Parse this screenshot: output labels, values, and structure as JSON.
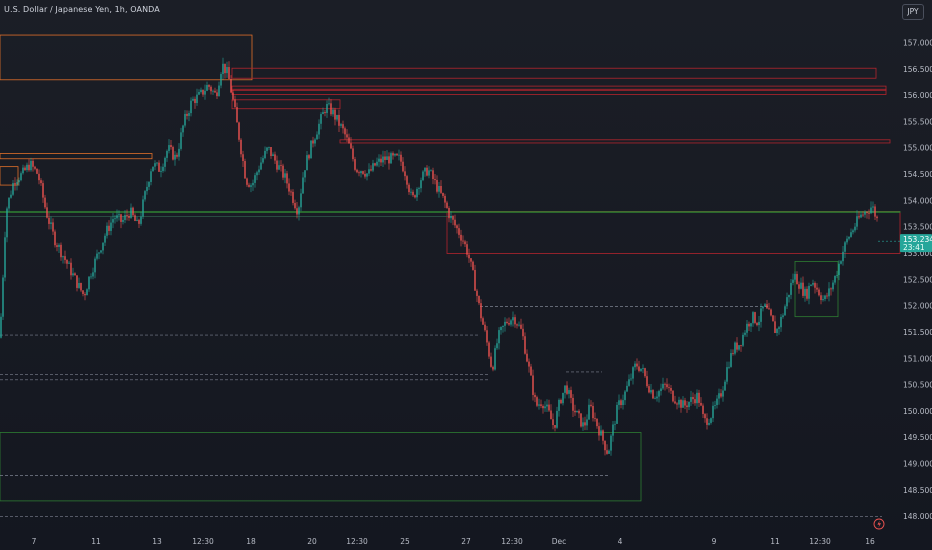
{
  "header": {
    "title": "U.S. Dollar / Japanese Yen, 1h, OANDA",
    "currency": "JPY"
  },
  "colors": {
    "bull": "#26a69a",
    "bear": "#ef5350",
    "zone_red": "#b2252d",
    "zone_orange": "#e0702a",
    "zone_green": "#2e7d32",
    "level_line": "#7c8190"
  },
  "chart_data": {
    "type": "candlestick",
    "title": "U.S. Dollar / Japanese Yen, 1h, OANDA",
    "ylim": [
      147.88,
      157.55
    ],
    "yticks": [
      "157.000",
      "156.500",
      "156.000",
      "155.500",
      "155.000",
      "154.500",
      "154.000",
      "153.500",
      "153.000",
      "152.500",
      "152.000",
      "151.500",
      "151.000",
      "150.500",
      "150.000",
      "149.500",
      "149.000",
      "148.500",
      "148.000"
    ],
    "xlabels": [
      "7",
      "11",
      "13",
      "12:30",
      "18",
      "20",
      "12:30",
      "25",
      "27",
      "12:30",
      "Dec",
      "4",
      "9",
      "11",
      "12:30",
      "16"
    ],
    "last_price": {
      "value": "153.234",
      "countdown": "23:41"
    },
    "path": [
      [
        0,
        151.4
      ],
      [
        6,
        153.8
      ],
      [
        14,
        154.4
      ],
      [
        22,
        154.5
      ],
      [
        30,
        154.7
      ],
      [
        38,
        154.5
      ],
      [
        46,
        153.8
      ],
      [
        54,
        153.3
      ],
      [
        62,
        153.0
      ],
      [
        70,
        152.7
      ],
      [
        78,
        152.4
      ],
      [
        84,
        152.2
      ],
      [
        90,
        152.6
      ],
      [
        98,
        153.0
      ],
      [
        106,
        153.4
      ],
      [
        114,
        153.7
      ],
      [
        122,
        153.6
      ],
      [
        130,
        153.8
      ],
      [
        138,
        153.5
      ],
      [
        146,
        154.2
      ],
      [
        152,
        154.7
      ],
      [
        160,
        154.6
      ],
      [
        168,
        155.0
      ],
      [
        176,
        154.8
      ],
      [
        184,
        155.5
      ],
      [
        192,
        155.9
      ],
      [
        200,
        156.0
      ],
      [
        208,
        156.2
      ],
      [
        216,
        156.0
      ],
      [
        222,
        156.6
      ],
      [
        228,
        156.4
      ],
      [
        234,
        155.8
      ],
      [
        240,
        155.1
      ],
      [
        246,
        154.4
      ],
      [
        252,
        154.3
      ],
      [
        260,
        154.7
      ],
      [
        268,
        155.0
      ],
      [
        274,
        154.8
      ],
      [
        280,
        154.6
      ],
      [
        286,
        154.4
      ],
      [
        292,
        154.1
      ],
      [
        298,
        153.8
      ],
      [
        304,
        154.6
      ],
      [
        312,
        155.1
      ],
      [
        320,
        155.5
      ],
      [
        326,
        155.8
      ],
      [
        332,
        155.7
      ],
      [
        338,
        155.5
      ],
      [
        344,
        155.3
      ],
      [
        350,
        155.0
      ],
      [
        356,
        154.6
      ],
      [
        362,
        154.6
      ],
      [
        368,
        154.5
      ],
      [
        376,
        154.7
      ],
      [
        384,
        154.8
      ],
      [
        392,
        154.8
      ],
      [
        400,
        154.8
      ],
      [
        406,
        154.5
      ],
      [
        412,
        154.0
      ],
      [
        420,
        154.4
      ],
      [
        428,
        154.6
      ],
      [
        436,
        154.3
      ],
      [
        444,
        154.0
      ],
      [
        450,
        153.7
      ],
      [
        456,
        153.5
      ],
      [
        462,
        153.3
      ],
      [
        468,
        153.0
      ],
      [
        474,
        152.5
      ],
      [
        480,
        151.9
      ],
      [
        486,
        151.4
      ],
      [
        492,
        150.8
      ],
      [
        498,
        151.4
      ],
      [
        506,
        151.7
      ],
      [
        514,
        151.8
      ],
      [
        522,
        151.5
      ],
      [
        530,
        150.7
      ],
      [
        536,
        150.1
      ],
      [
        542,
        150.2
      ],
      [
        548,
        150.0
      ],
      [
        554,
        149.7
      ],
      [
        560,
        150.2
      ],
      [
        566,
        150.5
      ],
      [
        572,
        150.1
      ],
      [
        578,
        149.9
      ],
      [
        584,
        149.7
      ],
      [
        590,
        150.1
      ],
      [
        596,
        149.8
      ],
      [
        602,
        149.5
      ],
      [
        608,
        149.2
      ],
      [
        612,
        149.6
      ],
      [
        618,
        150.1
      ],
      [
        624,
        150.3
      ],
      [
        630,
        150.6
      ],
      [
        636,
        150.9
      ],
      [
        642,
        150.8
      ],
      [
        648,
        150.5
      ],
      [
        654,
        150.3
      ],
      [
        660,
        150.4
      ],
      [
        666,
        150.5
      ],
      [
        672,
        150.3
      ],
      [
        678,
        150.2
      ],
      [
        684,
        150.1
      ],
      [
        690,
        150.2
      ],
      [
        698,
        150.3
      ],
      [
        704,
        149.8
      ],
      [
        710,
        149.9
      ],
      [
        716,
        150.1
      ],
      [
        722,
        150.4
      ],
      [
        728,
        150.9
      ],
      [
        734,
        151.2
      ],
      [
        740,
        151.3
      ],
      [
        746,
        151.6
      ],
      [
        752,
        151.8
      ],
      [
        758,
        151.7
      ],
      [
        764,
        152.0
      ],
      [
        770,
        151.8
      ],
      [
        776,
        151.5
      ],
      [
        782,
        151.8
      ],
      [
        788,
        152.2
      ],
      [
        794,
        152.6
      ],
      [
        800,
        152.4
      ],
      [
        806,
        152.2
      ],
      [
        812,
        152.5
      ],
      [
        818,
        152.3
      ],
      [
        824,
        152.1
      ],
      [
        830,
        152.3
      ],
      [
        836,
        152.6
      ],
      [
        842,
        153.0
      ],
      [
        848,
        153.3
      ],
      [
        854,
        153.5
      ],
      [
        860,
        153.7
      ],
      [
        866,
        153.8
      ],
      [
        872,
        153.9
      ],
      [
        878,
        153.6
      ]
    ],
    "zones": [
      {
        "kind": "orange",
        "x0": 0,
        "x1": 252,
        "top": 157.15,
        "bottom": 156.3
      },
      {
        "kind": "orange",
        "x0": 0,
        "x1": 152,
        "top": 154.9,
        "bottom": 154.8
      },
      {
        "kind": "orange",
        "x0": 0,
        "x1": 18,
        "top": 154.65,
        "bottom": 154.3
      },
      {
        "kind": "red",
        "x0": 232,
        "x1": 876,
        "top": 156.52,
        "bottom": 156.33
      },
      {
        "kind": "red",
        "x0": 232,
        "x1": 886,
        "top": 156.18,
        "bottom": 156.1
      },
      {
        "kind": "red",
        "x0": 232,
        "x1": 886,
        "top": 156.12,
        "bottom": 156.02
      },
      {
        "kind": "red",
        "x0": 232,
        "x1": 340,
        "top": 155.92,
        "bottom": 155.75
      },
      {
        "kind": "red",
        "x0": 340,
        "x1": 890,
        "top": 155.16,
        "bottom": 155.1
      },
      {
        "kind": "red",
        "x0": 447,
        "x1": 900,
        "top": 153.79,
        "bottom": 153.0
      },
      {
        "kind": "green",
        "x0": 795,
        "x1": 838,
        "top": 152.85,
        "bottom": 151.8
      },
      {
        "kind": "green",
        "x0": 0,
        "x1": 641,
        "top": 149.6,
        "bottom": 148.3
      },
      {
        "kind": "green",
        "x0": 0,
        "x1": 900,
        "top": 153.8,
        "bottom": 153.79
      }
    ],
    "levels": [
      {
        "y": 151.45,
        "x0": 0,
        "x1": 478,
        "style": "dash"
      },
      {
        "y": 151.99,
        "x0": 480,
        "x1": 770,
        "style": "dash"
      },
      {
        "y": 150.7,
        "x0": 0,
        "x1": 490,
        "style": "dash"
      },
      {
        "y": 150.6,
        "x0": 0,
        "x1": 490,
        "style": "dash"
      },
      {
        "y": 150.75,
        "x0": 566,
        "x1": 602,
        "style": "dash"
      },
      {
        "y": 148.78,
        "x0": 0,
        "x1": 610,
        "style": "dash"
      },
      {
        "y": 148.0,
        "x0": 0,
        "x1": 882,
        "style": "dash"
      },
      {
        "y": 153.7,
        "x0": 0,
        "x1": 452,
        "style": "solid"
      }
    ]
  }
}
